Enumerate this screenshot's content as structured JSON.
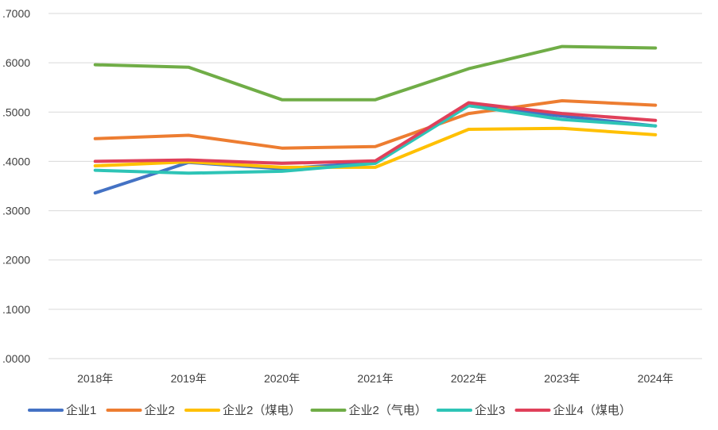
{
  "chart_data": {
    "type": "line",
    "title": "",
    "xlabel": "",
    "ylabel": "",
    "categories": [
      "2018年",
      "2019年",
      "2020年",
      "2021年",
      "2022年",
      "2023年",
      "2024年"
    ],
    "ylim": [
      0,
      0.7
    ],
    "yticks": [
      0,
      0.1,
      0.2,
      0.3,
      0.4,
      0.5,
      0.6,
      0.7
    ],
    "ytick_labels": [
      ".0000",
      ".1000",
      ".2000",
      ".3000",
      ".4000",
      ".5000",
      ".6000",
      ".7000"
    ],
    "grid": true,
    "legend_position": "bottom",
    "series": [
      {
        "name": "企业1",
        "color": "#4472C4",
        "values": [
          0.336,
          0.398,
          0.385,
          0.398,
          0.513,
          0.492,
          0.472
        ]
      },
      {
        "name": "企业2",
        "color": "#ED7D31",
        "values": [
          0.446,
          0.453,
          0.427,
          0.43,
          0.497,
          0.523,
          0.514
        ]
      },
      {
        "name": "企业2（煤电）",
        "color": "#FFC000",
        "values": [
          0.391,
          0.399,
          0.388,
          0.388,
          0.465,
          0.467,
          0.454
        ]
      },
      {
        "name": "企业2（气电）",
        "color": "#70AD47",
        "values": [
          0.596,
          0.591,
          0.525,
          0.525,
          0.588,
          0.633,
          0.63
        ]
      },
      {
        "name": "企业3",
        "color": "#2EC4B6",
        "values": [
          0.382,
          0.376,
          0.38,
          0.396,
          0.513,
          0.485,
          0.472
        ]
      },
      {
        "name": "企业4（煤电）",
        "color": "#E0405A",
        "values": [
          0.4,
          0.403,
          0.396,
          0.401,
          0.519,
          0.497,
          0.483
        ]
      }
    ]
  }
}
